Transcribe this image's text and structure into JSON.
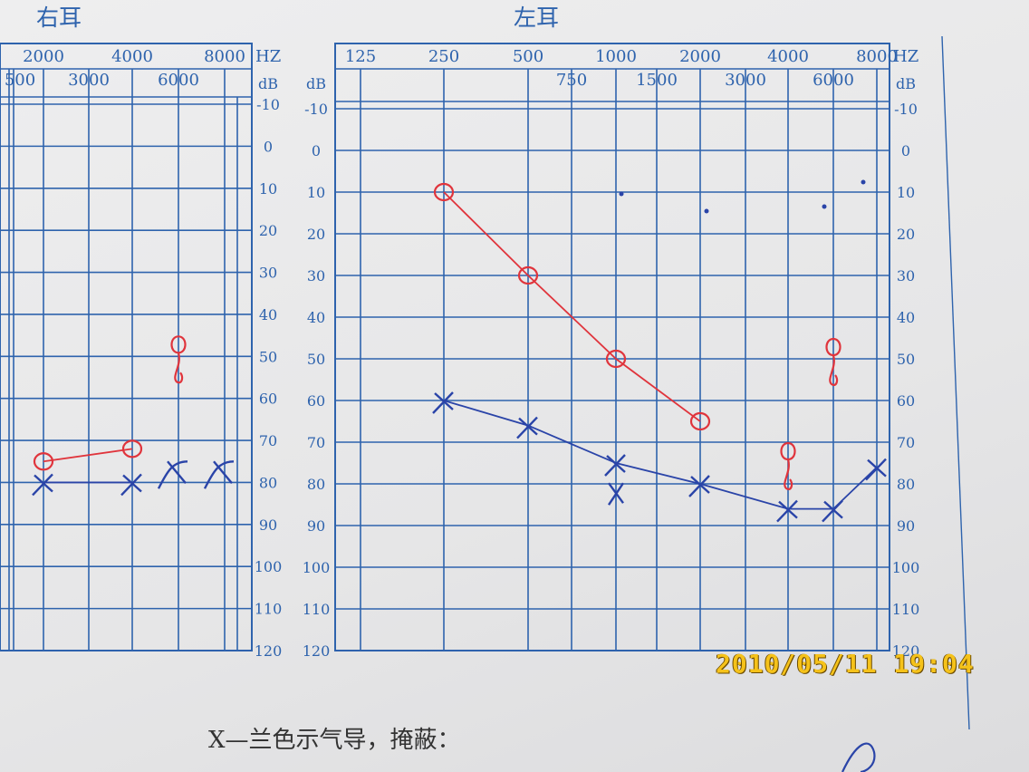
{
  "header": {
    "right_ear": "右耳",
    "left_ear": "左耳"
  },
  "legend_text": "X—兰色示气导，掩蔽：",
  "timestamp": "2010/05/11  19:04",
  "colors": {
    "grid": "#2e63ad",
    "bone_conduction": "#e0343c",
    "air_conduction": "#2a44a8"
  },
  "chart_data": [
    {
      "type": "line",
      "title": "右耳",
      "x_scale": "log",
      "x_tick_labels_top": [
        "2000",
        "4000",
        "8000"
      ],
      "x_tick_labels_bottom": [
        "500",
        "3000",
        "6000"
      ],
      "x_unit": "HZ",
      "y_unit": "dB",
      "y_ticks": [
        "-10",
        "0",
        "10",
        "20",
        "30",
        "40",
        "50",
        "60",
        "70",
        "80",
        "90",
        "100",
        "110",
        "120"
      ],
      "ylim": [
        -10,
        120
      ],
      "y_inverted": true,
      "series": [
        {
          "symbol": "O",
          "color": "#e0343c",
          "x": [
            2000,
            4000
          ],
          "y": [
            75,
            72
          ]
        },
        {
          "symbol": "X",
          "color": "#2a44a8",
          "x": [
            2000,
            4000
          ],
          "y": [
            80,
            80
          ]
        }
      ],
      "annotations": [
        {
          "symbol": "masked-bone",
          "x": 6000,
          "y": 50,
          "color": "#e0343c"
        },
        {
          "symbol": "masked-air",
          "x": 6000,
          "y": 75,
          "color": "#2a44a8"
        },
        {
          "symbol": "masked-air",
          "x": 8000,
          "y": 75,
          "color": "#2a44a8"
        }
      ]
    },
    {
      "type": "line",
      "title": "左耳",
      "x_scale": "log",
      "x_tick_labels_top": [
        "125",
        "250",
        "500",
        "1000",
        "2000",
        "4000",
        "8000"
      ],
      "x_tick_labels_bottom": [
        "750",
        "1500",
        "3000",
        "6000"
      ],
      "x_unit": "HZ",
      "y_unit": "dB",
      "y_ticks": [
        "-10",
        "0",
        "10",
        "20",
        "30",
        "40",
        "50",
        "60",
        "70",
        "80",
        "90",
        "100",
        "110",
        "120"
      ],
      "ylim": [
        -10,
        120
      ],
      "y_inverted": true,
      "series": [
        {
          "symbol": "O",
          "color": "#e0343c",
          "x": [
            250,
            500,
            1000,
            2000
          ],
          "y": [
            10,
            30,
            50,
            65
          ]
        },
        {
          "symbol": "X",
          "color": "#2a44a8",
          "x": [
            250,
            500,
            1000,
            2000,
            4000,
            6000,
            8000
          ],
          "y": [
            60,
            66,
            75,
            80,
            86,
            86,
            76
          ]
        }
      ],
      "annotations": [
        {
          "symbol": "masked-bone",
          "x": 4000,
          "y": 75,
          "color": "#e0343c"
        },
        {
          "symbol": "masked-bone",
          "x": 6000,
          "y": 50,
          "color": "#e0343c"
        },
        {
          "symbol": "X",
          "x": 1000,
          "y": 82,
          "color": "#2a44a8"
        }
      ]
    }
  ]
}
